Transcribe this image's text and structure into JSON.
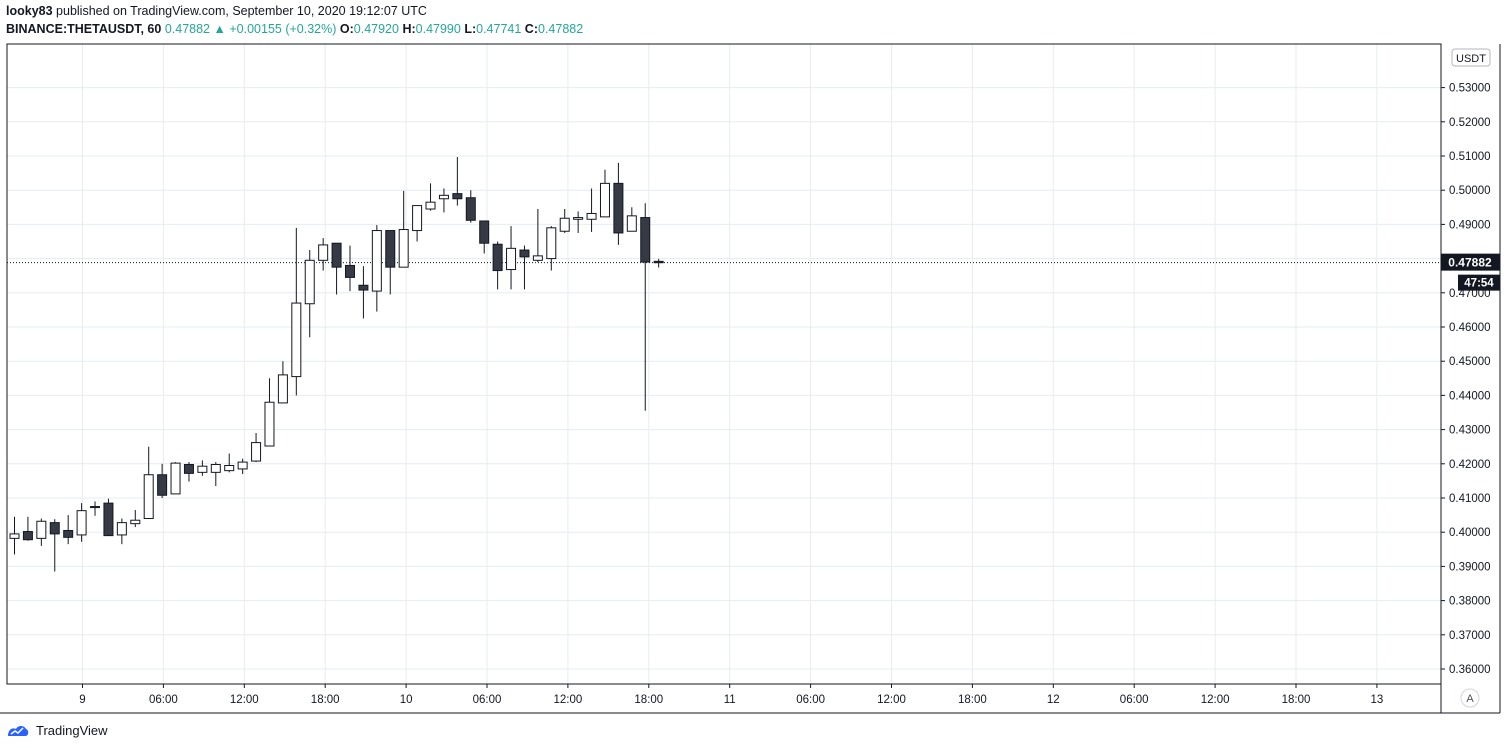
{
  "header": {
    "author": "looky83",
    "published_text": "published on TradingView.com, September 10, 2020 19:12:07 UTC",
    "symbol": "BINANCE:THETAUSDT, 60",
    "last": "0.47882",
    "change_arrow": "▲",
    "change": "+0.00155 (+0.32%)",
    "o_label": "O:",
    "o_value": "0.47920",
    "h_label": "H:",
    "h_value": "0.47990",
    "l_label": "L:",
    "l_value": "0.47741",
    "c_label": "C:",
    "c_value": "0.47882"
  },
  "footer": {
    "brand": "TradingView",
    "brand_icon": "tradingview-logo-icon"
  },
  "auto_scale_button": "A",
  "currency_label": "USDT",
  "countdown": "47:54",
  "colors": {
    "up_fill": "#ffffff",
    "down_fill": "#363a45",
    "candle_outline": "#131722",
    "grid": "#e6ecf0",
    "accent_up": "#26a69a"
  },
  "chart_data": {
    "type": "candlestick",
    "title": "BINANCE:THETAUSDT, 60",
    "x_tick_labels": [
      "9",
      "06:00",
      "12:00",
      "18:00",
      "10",
      "06:00",
      "12:00",
      "18:00",
      "11",
      "06:00",
      "12:00",
      "18:00",
      "12",
      "06:00",
      "12:00",
      "18:00",
      "13"
    ],
    "y_tick_labels": [
      "0.36000",
      "0.37000",
      "0.38000",
      "0.39000",
      "0.40000",
      "0.41000",
      "0.42000",
      "0.43000",
      "0.44000",
      "0.45000",
      "0.46000",
      "0.47000",
      "0.48000",
      "0.49000",
      "0.50000",
      "0.51000",
      "0.52000",
      "0.53000"
    ],
    "ylim": [
      0.356,
      0.539
    ],
    "last_price": 0.47882,
    "grid": true,
    "candles": [
      {
        "o": 0.3982,
        "h": 0.4045,
        "l": 0.3935,
        "c": 0.3995
      },
      {
        "o": 0.4002,
        "h": 0.4045,
        "l": 0.3975,
        "c": 0.3978
      },
      {
        "o": 0.3982,
        "h": 0.404,
        "l": 0.396,
        "c": 0.4032
      },
      {
        "o": 0.4028,
        "h": 0.4038,
        "l": 0.3885,
        "c": 0.3995
      },
      {
        "o": 0.4005,
        "h": 0.405,
        "l": 0.3965,
        "c": 0.3985
      },
      {
        "o": 0.3992,
        "h": 0.4085,
        "l": 0.3972,
        "c": 0.4063
      },
      {
        "o": 0.4072,
        "h": 0.409,
        "l": 0.4048,
        "c": 0.4075
      },
      {
        "o": 0.4085,
        "h": 0.4098,
        "l": 0.399,
        "c": 0.399
      },
      {
        "o": 0.3992,
        "h": 0.404,
        "l": 0.3965,
        "c": 0.4028
      },
      {
        "o": 0.4025,
        "h": 0.4065,
        "l": 0.4015,
        "c": 0.4035
      },
      {
        "o": 0.404,
        "h": 0.425,
        "l": 0.404,
        "c": 0.4168
      },
      {
        "o": 0.4168,
        "h": 0.42,
        "l": 0.41,
        "c": 0.4108
      },
      {
        "o": 0.4112,
        "h": 0.4205,
        "l": 0.4112,
        "c": 0.4202
      },
      {
        "o": 0.4198,
        "h": 0.4205,
        "l": 0.4148,
        "c": 0.4172
      },
      {
        "o": 0.4175,
        "h": 0.421,
        "l": 0.4165,
        "c": 0.4193
      },
      {
        "o": 0.4175,
        "h": 0.4205,
        "l": 0.4135,
        "c": 0.4198
      },
      {
        "o": 0.418,
        "h": 0.423,
        "l": 0.4175,
        "c": 0.4195
      },
      {
        "o": 0.4185,
        "h": 0.4215,
        "l": 0.417,
        "c": 0.4205
      },
      {
        "o": 0.4208,
        "h": 0.429,
        "l": 0.4205,
        "c": 0.4262
      },
      {
        "o": 0.4252,
        "h": 0.445,
        "l": 0.4252,
        "c": 0.438
      },
      {
        "o": 0.4378,
        "h": 0.45,
        "l": 0.4378,
        "c": 0.446
      },
      {
        "o": 0.4455,
        "h": 0.489,
        "l": 0.44,
        "c": 0.467
      },
      {
        "o": 0.4668,
        "h": 0.4825,
        "l": 0.457,
        "c": 0.4795
      },
      {
        "o": 0.4795,
        "h": 0.486,
        "l": 0.4765,
        "c": 0.484
      },
      {
        "o": 0.4845,
        "h": 0.4845,
        "l": 0.4695,
        "c": 0.4775
      },
      {
        "o": 0.478,
        "h": 0.4838,
        "l": 0.4705,
        "c": 0.4745
      },
      {
        "o": 0.4722,
        "h": 0.4778,
        "l": 0.4625,
        "c": 0.4708
      },
      {
        "o": 0.4705,
        "h": 0.4898,
        "l": 0.4645,
        "c": 0.4882
      },
      {
        "o": 0.4882,
        "h": 0.4882,
        "l": 0.4695,
        "c": 0.4775
      },
      {
        "o": 0.4775,
        "h": 0.4998,
        "l": 0.4775,
        "c": 0.4885
      },
      {
        "o": 0.4882,
        "h": 0.495,
        "l": 0.485,
        "c": 0.4955
      },
      {
        "o": 0.4945,
        "h": 0.502,
        "l": 0.494,
        "c": 0.4965
      },
      {
        "o": 0.4975,
        "h": 0.5005,
        "l": 0.4935,
        "c": 0.4985
      },
      {
        "o": 0.499,
        "h": 0.5097,
        "l": 0.4955,
        "c": 0.4975
      },
      {
        "o": 0.4978,
        "h": 0.5,
        "l": 0.4905,
        "c": 0.4912
      },
      {
        "o": 0.491,
        "h": 0.491,
        "l": 0.4815,
        "c": 0.4845
      },
      {
        "o": 0.4842,
        "h": 0.485,
        "l": 0.471,
        "c": 0.4765
      },
      {
        "o": 0.4768,
        "h": 0.4895,
        "l": 0.471,
        "c": 0.483
      },
      {
        "o": 0.4825,
        "h": 0.4838,
        "l": 0.471,
        "c": 0.4805
      },
      {
        "o": 0.4795,
        "h": 0.4945,
        "l": 0.479,
        "c": 0.4808
      },
      {
        "o": 0.48,
        "h": 0.4895,
        "l": 0.4765,
        "c": 0.489
      },
      {
        "o": 0.488,
        "h": 0.4945,
        "l": 0.4875,
        "c": 0.4918
      },
      {
        "o": 0.4915,
        "h": 0.4938,
        "l": 0.4875,
        "c": 0.492
      },
      {
        "o": 0.4915,
        "h": 0.5005,
        "l": 0.4878,
        "c": 0.4932
      },
      {
        "o": 0.4922,
        "h": 0.506,
        "l": 0.4922,
        "c": 0.502
      },
      {
        "o": 0.502,
        "h": 0.508,
        "l": 0.484,
        "c": 0.4875
      },
      {
        "o": 0.488,
        "h": 0.495,
        "l": 0.488,
        "c": 0.4925
      },
      {
        "o": 0.492,
        "h": 0.4962,
        "l": 0.4355,
        "c": 0.479
      },
      {
        "o": 0.4792,
        "h": 0.4799,
        "l": 0.4774,
        "c": 0.4788
      }
    ]
  }
}
